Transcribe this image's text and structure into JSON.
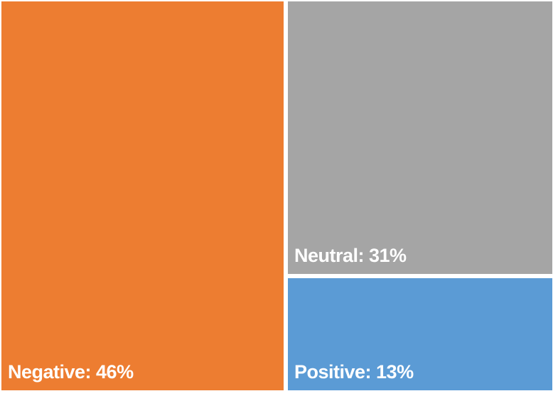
{
  "chart_data": {
    "type": "treemap",
    "title": "",
    "categories": [
      "Negative",
      "Neutral",
      "Positive"
    ],
    "values": [
      46,
      31,
      13
    ],
    "unit": "%",
    "items": [
      {
        "name": "Negative",
        "value": 46,
        "label": "Negative: 46%",
        "color": "#ED7D31"
      },
      {
        "name": "Neutral",
        "value": 31,
        "label": "Neutral: 31%",
        "color": "#A5A5A5"
      },
      {
        "name": "Positive",
        "value": 13,
        "label": "Positive: 13%",
        "color": "#5B9BD5"
      }
    ],
    "label_text_color": "#FFFFFF",
    "background_color": "#FFFFFF",
    "legend": "none",
    "layout_hint": "left column = Negative; right column split top(Neutral)/bottom(Positive); white gutters between tiles"
  }
}
